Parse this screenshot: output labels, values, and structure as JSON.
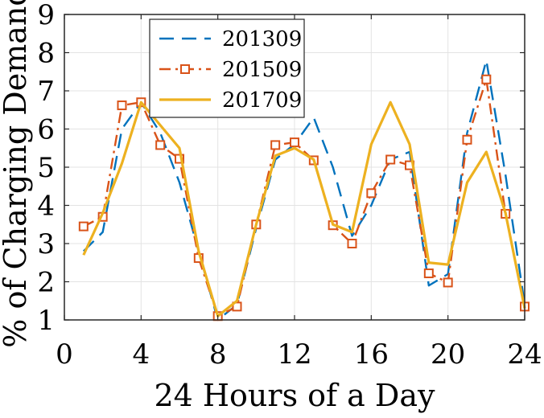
{
  "chart_data": {
    "type": "line",
    "xlabel": "24 Hours of a Day",
    "ylabel": "% of Charging Demand",
    "xlim": [
      0,
      24
    ],
    "ylim": [
      1,
      9
    ],
    "xticks": [
      0,
      4,
      8,
      12,
      16,
      20,
      24
    ],
    "yticks": [
      1,
      2,
      3,
      4,
      5,
      6,
      7,
      8,
      9
    ],
    "grid": true,
    "legend_position": "top-left",
    "x": [
      1,
      2,
      3,
      4,
      5,
      6,
      7,
      8,
      9,
      10,
      11,
      12,
      13,
      14,
      15,
      16,
      17,
      18,
      19,
      20,
      21,
      22,
      23,
      24
    ],
    "series": [
      {
        "name": "201309",
        "color": "#0072BD",
        "line_style": "dashed",
        "marker": "none",
        "values": [
          2.8,
          3.3,
          6.0,
          6.7,
          5.9,
          4.6,
          2.8,
          1.0,
          1.4,
          3.4,
          5.2,
          5.6,
          6.3,
          5.0,
          3.2,
          4.0,
          5.2,
          5.4,
          1.9,
          2.2,
          5.9,
          7.8,
          4.8,
          1.4
        ]
      },
      {
        "name": "201509",
        "color": "#D95319",
        "line_style": "dashdot",
        "marker": "square",
        "values": [
          3.45,
          3.7,
          6.62,
          6.7,
          5.58,
          5.22,
          2.62,
          1.1,
          1.35,
          3.5,
          5.58,
          5.65,
          5.18,
          3.48,
          3.0,
          4.32,
          5.2,
          5.05,
          2.22,
          1.98,
          5.72,
          7.3,
          3.78,
          1.35
        ]
      },
      {
        "name": "201709",
        "color": "#EDB120",
        "line_style": "solid",
        "marker": "none",
        "values": [
          2.7,
          3.8,
          5.1,
          6.7,
          6.1,
          5.5,
          2.8,
          1.1,
          1.5,
          3.5,
          5.3,
          5.5,
          5.2,
          3.5,
          3.3,
          5.6,
          6.7,
          5.6,
          2.5,
          2.45,
          4.6,
          5.4,
          3.8,
          1.3
        ]
      }
    ]
  }
}
